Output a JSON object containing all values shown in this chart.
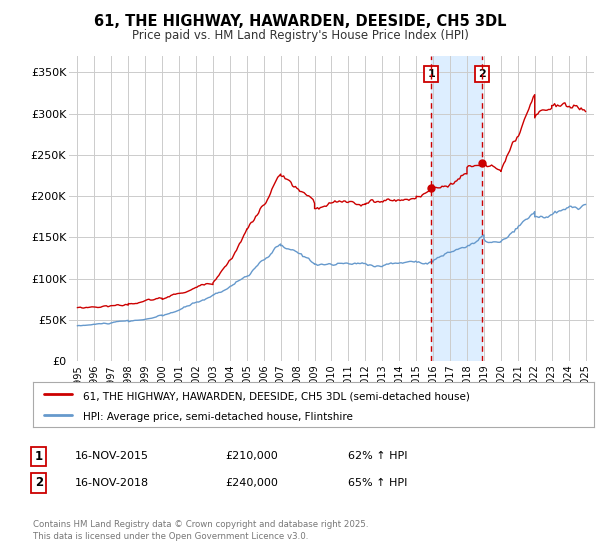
{
  "title": "61, THE HIGHWAY, HAWARDEN, DEESIDE, CH5 3DL",
  "subtitle": "Price paid vs. HM Land Registry's House Price Index (HPI)",
  "legend_line1": "61, THE HIGHWAY, HAWARDEN, DEESIDE, CH5 3DL (semi-detached house)",
  "legend_line2": "HPI: Average price, semi-detached house, Flintshire",
  "footer": "Contains HM Land Registry data © Crown copyright and database right 2025.\nThis data is licensed under the Open Government Licence v3.0.",
  "red_color": "#cc0000",
  "blue_color": "#6699cc",
  "marker1_date": 2015.88,
  "marker2_date": 2018.88,
  "marker1_value": 210000,
  "marker2_value": 240000,
  "marker1_label": "1",
  "marker2_label": "2",
  "sale1_date": "16-NOV-2015",
  "sale1_price": "£210,000",
  "sale1_pct": "62% ↑ HPI",
  "sale2_date": "16-NOV-2018",
  "sale2_price": "£240,000",
  "sale2_pct": "65% ↑ HPI",
  "ylim": [
    0,
    370000
  ],
  "xlim": [
    1994.5,
    2025.5
  ],
  "yticks": [
    0,
    50000,
    100000,
    150000,
    200000,
    250000,
    300000,
    350000
  ],
  "ytick_labels": [
    "£0",
    "£50K",
    "£100K",
    "£150K",
    "£200K",
    "£250K",
    "£300K",
    "£350K"
  ],
  "background_color": "#ffffff",
  "grid_color": "#cccccc",
  "shading_color": "#ddeeff"
}
